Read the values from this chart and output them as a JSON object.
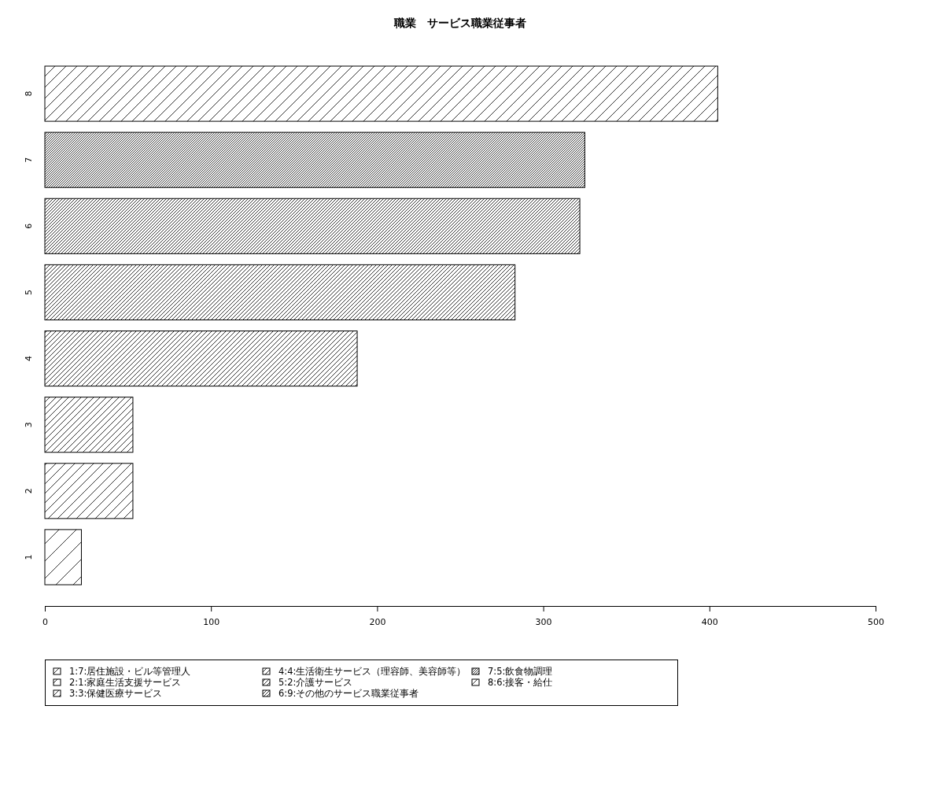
{
  "chart_data": {
    "type": "bar",
    "orientation": "horizontal",
    "title": "職業　サービス職業従事者",
    "categories": [
      "8",
      "7",
      "6",
      "5",
      "4",
      "3",
      "2",
      "1"
    ],
    "series": [
      {
        "name": "1:7:居住施設・ビル等管理人",
        "color": "#000000",
        "values": [
          null,
          null,
          null,
          null,
          null,
          null,
          null,
          22
        ]
      },
      {
        "name": "2:1:家庭生活支援サービス",
        "color": "#000000",
        "values": [
          null,
          null,
          null,
          null,
          null,
          null,
          53,
          null
        ]
      },
      {
        "name": "3:3:保健医療サービス",
        "color": "#000000",
        "values": [
          null,
          null,
          null,
          null,
          null,
          53,
          null,
          null
        ]
      },
      {
        "name": "4:4:生活衛生サービス（理容師、美容師等）",
        "color": "#000000",
        "values": [
          null,
          null,
          null,
          null,
          188,
          null,
          null,
          null
        ]
      },
      {
        "name": "5:2:介護サービス",
        "color": "#000000",
        "values": [
          null,
          null,
          null,
          283,
          null,
          null,
          null,
          null
        ]
      },
      {
        "name": "6:9:その他のサービス職業従事者",
        "color": "#000000",
        "values": [
          null,
          null,
          322,
          null,
          null,
          null,
          null,
          null
        ]
      },
      {
        "name": "7:5:飲食物調理",
        "color": "#000000",
        "values": [
          null,
          325,
          null,
          null,
          null,
          null,
          null,
          null
        ]
      },
      {
        "name": "8:6:接客・給仕",
        "color": "#000000",
        "values": [
          405,
          null,
          null,
          null,
          null,
          null,
          null,
          null
        ]
      }
    ],
    "xlim": [
      0,
      500
    ],
    "xticks": [
      0,
      100,
      200,
      300,
      400,
      500
    ],
    "legend": "bottom"
  }
}
